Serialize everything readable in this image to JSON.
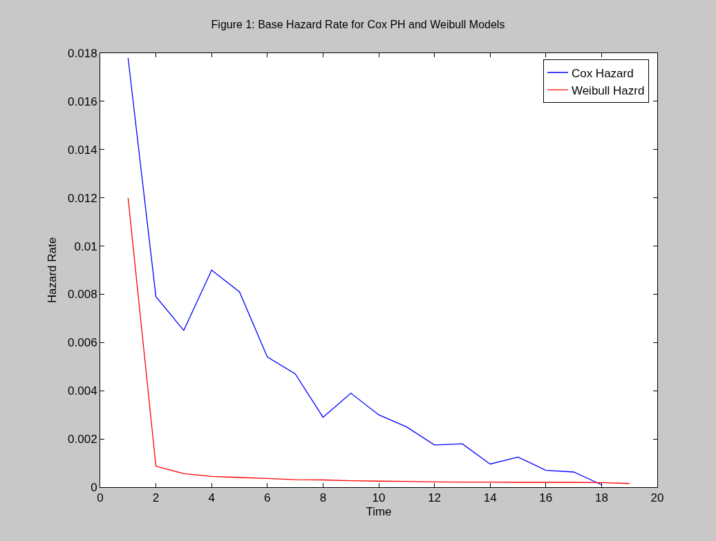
{
  "chart_data": {
    "type": "line",
    "title": "Figure 1: Base Hazard Rate for Cox PH and Weibull Models",
    "xlabel": "Time",
    "ylabel": "Hazard Rate",
    "x": [
      1,
      2,
      3,
      4,
      5,
      6,
      7,
      8,
      9,
      10,
      11,
      12,
      13,
      14,
      15,
      16,
      17,
      18,
      19
    ],
    "series": [
      {
        "name": "Cox Hazard",
        "color": "#0000ff",
        "values": [
          0.0178,
          0.0079,
          0.0065,
          0.009,
          0.0081,
          0.0054,
          0.0047,
          0.0029,
          0.0039,
          0.003,
          0.0025,
          0.00175,
          0.0018,
          0.00096,
          0.00125,
          0.0007,
          0.00063,
          0.0001,
          null
        ]
      },
      {
        "name": "Weibull Hazrd",
        "color": "#ff0000",
        "values": [
          0.012,
          0.00087,
          0.00056,
          0.00045,
          0.0004,
          0.00036,
          0.00031,
          0.0003,
          0.00027,
          0.00025,
          0.00024,
          0.00022,
          0.00021,
          0.00021,
          0.0002,
          0.0002,
          0.0002,
          0.00019,
          0.00015
        ]
      }
    ],
    "xlim": [
      0,
      20
    ],
    "xticks": [
      0,
      2,
      4,
      6,
      8,
      10,
      12,
      14,
      16,
      18,
      20
    ],
    "ylim": [
      0,
      0.018
    ],
    "yticks": [
      0,
      0.002,
      0.004,
      0.006,
      0.008,
      0.01,
      0.012,
      0.014,
      0.016,
      0.018
    ],
    "legend": "top right",
    "marker": "none",
    "line_style": "solid"
  }
}
